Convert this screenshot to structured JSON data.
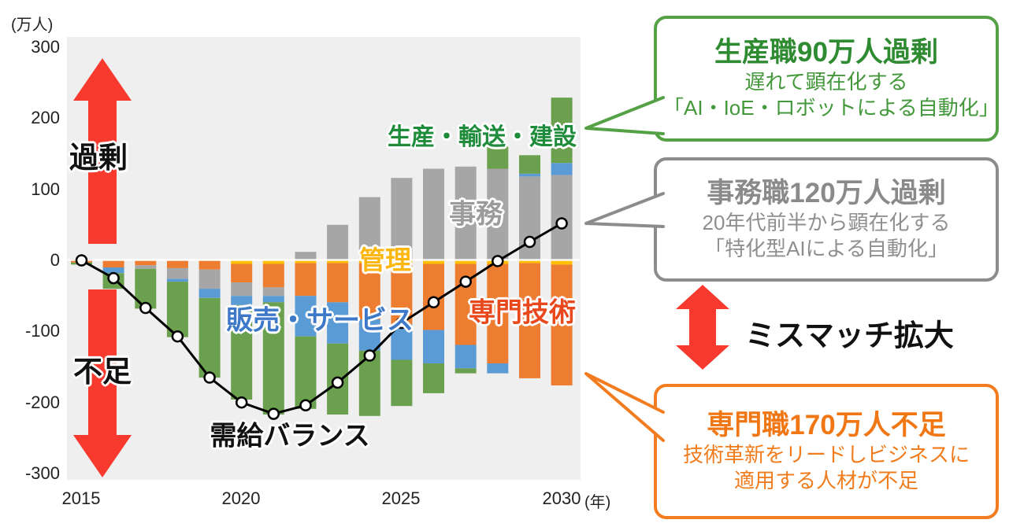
{
  "y_axis": {
    "unit": "(万人)",
    "ticks": [
      "300",
      "200",
      "100",
      "0",
      "-100",
      "-200",
      "-300"
    ]
  },
  "x_axis": {
    "ticks": [
      "2015",
      "2020",
      "2025",
      "2030"
    ],
    "unit": "(年)"
  },
  "side_labels": {
    "surplus": "過剰",
    "shortage": "不足"
  },
  "mismatch_label": "ミスマッチ拡大",
  "colors": {
    "arrow_red": "#f8392d",
    "plot_background": "#efefef",
    "balance_line": "#000000",
    "marker_fill": "#ffffff"
  },
  "callouts": {
    "production": {
      "title": "生産職90万人過剰",
      "line1": "遅れて顕在化する",
      "line2": "「AI・IoE・ロボットによる自動化」",
      "color": "#55a246"
    },
    "clerical": {
      "title": "事務職120万人過剰",
      "line1": "20年代前半から顕在化する",
      "line2": "「特化型AIによる自動化」",
      "color": "#8c8c8c"
    },
    "specialist": {
      "title": "専門職170万人不足",
      "line1": "技術革新をリードしビジネスに",
      "line2": "適用する人材が不足",
      "color": "#f47c20"
    }
  },
  "chart_data": {
    "type": "bar",
    "subtype": "diverging-stacked-bar-with-line",
    "unit": "万人",
    "ylim": [
      -300,
      300
    ],
    "grid": false,
    "x": [
      2015,
      2016,
      2017,
      2018,
      2019,
      2020,
      2021,
      2022,
      2023,
      2024,
      2025,
      2026,
      2027,
      2028,
      2029,
      2030
    ],
    "categories": [
      {
        "id": "kanri",
        "label": "管理",
        "color": "#ffc000",
        "label_color": "#fdb60d"
      },
      {
        "id": "jimu",
        "label": "事務",
        "color": "#a6a6a6",
        "label_color": "#9b9b9b"
      },
      {
        "id": "hanbai",
        "label": "販売・サービス",
        "color": "#5b9bd5",
        "label_color": "#3d79c8"
      },
      {
        "id": "senmon",
        "label": "専門技術",
        "color": "#ed7d31",
        "label_color": "#e8481c"
      },
      {
        "id": "seisan",
        "label": "生産・輸送・建設",
        "color": "#6aa04e",
        "label_color": "#1f8c3c"
      }
    ],
    "surplus_order": [
      "jimu",
      "hanbai",
      "seisan"
    ],
    "shortage_order": [
      "kanri",
      "senmon",
      "jimu",
      "hanbai",
      "seisan"
    ],
    "surplus": {
      "jimu": [
        2,
        0,
        0,
        0,
        0,
        0,
        0,
        12,
        50,
        89,
        116,
        129,
        132,
        129,
        118,
        120
      ],
      "hanbai": [
        0,
        0,
        0,
        0,
        0,
        0,
        0,
        0,
        0,
        0,
        0,
        0,
        0,
        0,
        4,
        17
      ],
      "seisan": [
        0,
        0,
        0,
        0,
        0,
        0,
        0,
        0,
        0,
        0,
        0,
        0,
        0,
        31,
        26,
        92
      ]
    },
    "shortage": {
      "kanri": [
        0,
        0,
        0,
        0,
        0,
        5,
        5,
        4,
        4,
        4,
        4,
        5,
        5,
        5,
        4,
        6
      ],
      "senmon": [
        3,
        10,
        7,
        11,
        13,
        26,
        33,
        46,
        55,
        79,
        86,
        93,
        114,
        140,
        162,
        170
      ],
      "jimu": [
        0,
        0,
        5,
        15,
        27,
        19,
        12,
        0,
        0,
        0,
        0,
        0,
        0,
        0,
        0,
        0
      ],
      "hanbai": [
        0,
        8,
        0,
        4,
        13,
        13,
        9,
        57,
        58,
        44,
        50,
        47,
        33,
        14,
        0,
        0
      ],
      "seisan": [
        3,
        22,
        56,
        78,
        112,
        133,
        158,
        102,
        100,
        92,
        65,
        42,
        7,
        0,
        0,
        0
      ]
    },
    "balance_line": {
      "label": "需給バランス",
      "values": [
        0,
        -25,
        -67,
        -107,
        -165,
        -200,
        -216,
        -204,
        -172,
        -134,
        -88,
        -59,
        -30,
        -1,
        26,
        52
      ]
    }
  }
}
